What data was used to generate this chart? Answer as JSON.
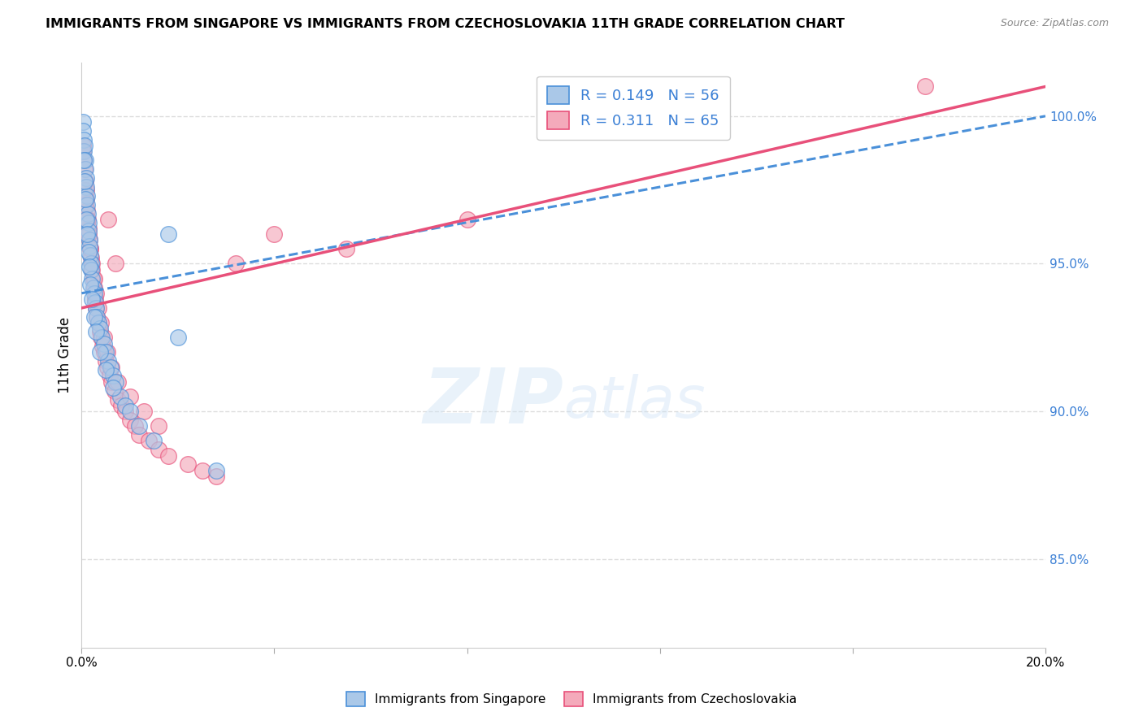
{
  "title": "IMMIGRANTS FROM SINGAPORE VS IMMIGRANTS FROM CZECHOSLOVAKIA 11TH GRADE CORRELATION CHART",
  "source": "Source: ZipAtlas.com",
  "ylabel": "11th Grade",
  "x_min": 0.0,
  "x_max": 20.0,
  "y_min": 82.0,
  "y_max": 101.8,
  "y_ticks": [
    85.0,
    90.0,
    95.0,
    100.0
  ],
  "y_tick_labels": [
    "85.0%",
    "90.0%",
    "95.0%",
    "100.0%"
  ],
  "legend_R1": "R = 0.149",
  "legend_N1": "N = 56",
  "legend_R2": "R = 0.311",
  "legend_N2": "N = 65",
  "color_singapore": "#aac8e8",
  "color_czechoslovakia": "#f4aabb",
  "line_color_singapore": "#4a90d9",
  "line_color_czechoslovakia": "#e8507a",
  "grid_color": "#dddddd",
  "singapore_x": [
    0.02,
    0.03,
    0.04,
    0.05,
    0.06,
    0.07,
    0.08,
    0.09,
    0.1,
    0.11,
    0.12,
    0.13,
    0.14,
    0.15,
    0.16,
    0.17,
    0.18,
    0.19,
    0.2,
    0.22,
    0.24,
    0.26,
    0.28,
    0.3,
    0.32,
    0.35,
    0.38,
    0.42,
    0.46,
    0.5,
    0.55,
    0.6,
    0.65,
    0.7,
    0.8,
    0.9,
    1.0,
    1.2,
    1.5,
    2.0,
    0.04,
    0.06,
    0.08,
    0.1,
    0.12,
    0.14,
    0.16,
    0.18,
    0.22,
    0.26,
    0.3,
    0.38,
    0.5,
    0.65,
    1.8,
    2.8
  ],
  "singapore_y": [
    99.8,
    99.5,
    99.2,
    98.8,
    99.0,
    98.5,
    98.2,
    97.9,
    97.6,
    97.3,
    97.0,
    96.7,
    96.4,
    96.1,
    95.8,
    95.6,
    95.3,
    95.0,
    94.8,
    94.5,
    94.2,
    94.0,
    93.7,
    93.5,
    93.2,
    93.0,
    92.8,
    92.5,
    92.3,
    92.0,
    91.7,
    91.5,
    91.2,
    91.0,
    90.5,
    90.2,
    90.0,
    89.5,
    89.0,
    92.5,
    98.5,
    97.8,
    97.2,
    96.5,
    96.0,
    95.4,
    94.9,
    94.3,
    93.8,
    93.2,
    92.7,
    92.0,
    91.4,
    90.8,
    96.0,
    88.0
  ],
  "czechoslovakia_x": [
    0.02,
    0.03,
    0.05,
    0.06,
    0.08,
    0.09,
    0.1,
    0.11,
    0.13,
    0.15,
    0.17,
    0.18,
    0.2,
    0.22,
    0.24,
    0.26,
    0.28,
    0.3,
    0.32,
    0.35,
    0.38,
    0.4,
    0.43,
    0.46,
    0.5,
    0.54,
    0.58,
    0.62,
    0.68,
    0.75,
    0.82,
    0.9,
    1.0,
    1.1,
    1.2,
    1.4,
    1.6,
    1.8,
    2.2,
    2.8,
    0.05,
    0.08,
    0.12,
    0.15,
    0.18,
    0.22,
    0.26,
    0.3,
    0.35,
    0.4,
    0.46,
    0.54,
    0.62,
    0.75,
    1.0,
    1.3,
    1.6,
    2.5,
    0.55,
    0.7,
    3.2,
    4.0,
    5.5,
    8.0,
    17.5
  ],
  "czechoslovakia_y": [
    99.0,
    98.8,
    98.5,
    98.2,
    97.8,
    97.5,
    97.2,
    96.8,
    96.5,
    96.2,
    95.8,
    95.5,
    95.2,
    94.8,
    94.5,
    94.2,
    93.8,
    93.5,
    93.2,
    93.0,
    92.7,
    92.5,
    92.2,
    92.0,
    91.7,
    91.5,
    91.2,
    91.0,
    90.7,
    90.4,
    90.2,
    90.0,
    89.7,
    89.5,
    89.2,
    89.0,
    88.7,
    88.5,
    88.2,
    87.8,
    97.5,
    97.0,
    96.5,
    96.0,
    95.5,
    95.0,
    94.5,
    94.0,
    93.5,
    93.0,
    92.5,
    92.0,
    91.5,
    91.0,
    90.5,
    90.0,
    89.5,
    88.0,
    96.5,
    95.0,
    95.0,
    96.0,
    95.5,
    96.5,
    101.0
  ],
  "trendline_sg_x0": 0.0,
  "trendline_sg_y0": 94.0,
  "trendline_sg_x1": 20.0,
  "trendline_sg_y1": 100.0,
  "trendline_cz_x0": 0.0,
  "trendline_cz_y0": 93.5,
  "trendline_cz_x1": 20.0,
  "trendline_cz_y1": 101.0
}
